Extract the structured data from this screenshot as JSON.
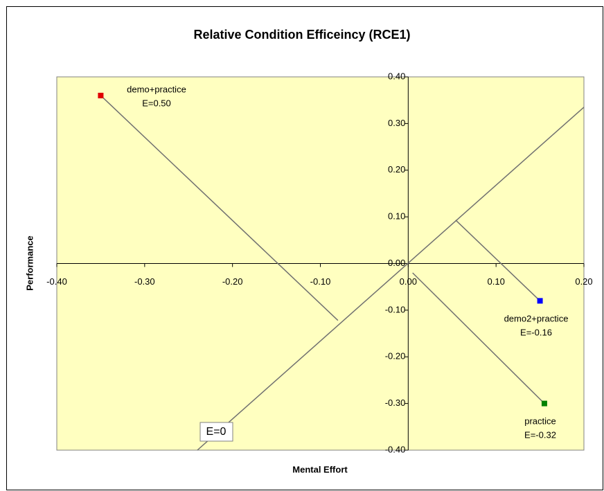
{
  "chart_data": {
    "type": "scatter",
    "title": "Relative Condition Efficeincy (RCE1)",
    "xlabel": "Mental Effort",
    "ylabel": "Performance",
    "xlim": [
      -0.4,
      0.2
    ],
    "ylim": [
      -0.4,
      0.4
    ],
    "xticks": [
      {
        "value": -0.4,
        "label": "-0.40"
      },
      {
        "value": -0.3,
        "label": "-0.30"
      },
      {
        "value": -0.2,
        "label": "-0.20"
      },
      {
        "value": -0.1,
        "label": "-0.10"
      },
      {
        "value": 0,
        "label": "0.00"
      },
      {
        "value": 0.1,
        "label": "0.10"
      },
      {
        "value": 0.2,
        "label": "0.20"
      }
    ],
    "yticks": [
      {
        "value": -0.4,
        "label": "-0.40"
      },
      {
        "value": -0.3,
        "label": "-0.30"
      },
      {
        "value": -0.2,
        "label": "-0.20"
      },
      {
        "value": -0.1,
        "label": "-0.10"
      },
      {
        "value": 0,
        "label": "0.00"
      },
      {
        "value": 0.1,
        "label": "0.10"
      },
      {
        "value": 0.2,
        "label": "0.20"
      },
      {
        "value": 0.3,
        "label": "0.30"
      },
      {
        "value": 0.4,
        "label": "0.40"
      }
    ],
    "series": [
      {
        "name": "demo+practice",
        "color": "#e00000",
        "x": [
          -0.35
        ],
        "values": [
          0.36
        ],
        "efficiency": "E=0.50"
      },
      {
        "name": "demo2+practice",
        "color": "#0000ff",
        "x": [
          0.15
        ],
        "values": [
          -0.08
        ],
        "efficiency": "E=-0.16"
      },
      {
        "name": "practice",
        "color": "#008000",
        "x": [
          0.155
        ],
        "values": [
          -0.3
        ],
        "efficiency": "E=-0.32"
      }
    ],
    "lines": [
      {
        "color": "#707070",
        "x": [
          -0.24,
          0.2
        ],
        "values": [
          -0.4,
          0.335
        ]
      },
      {
        "color": "#707070",
        "x": [
          -0.35,
          -0.08
        ],
        "values": [
          0.36,
          -0.122
        ]
      },
      {
        "color": "#707070",
        "x": [
          0.15,
          0.054
        ],
        "values": [
          -0.08,
          0.093
        ]
      },
      {
        "color": "#707070",
        "x": [
          0.155,
          0.005
        ],
        "values": [
          -0.3,
          -0.02
        ]
      }
    ],
    "annotation": "E=0",
    "background": "#ffffc0"
  }
}
